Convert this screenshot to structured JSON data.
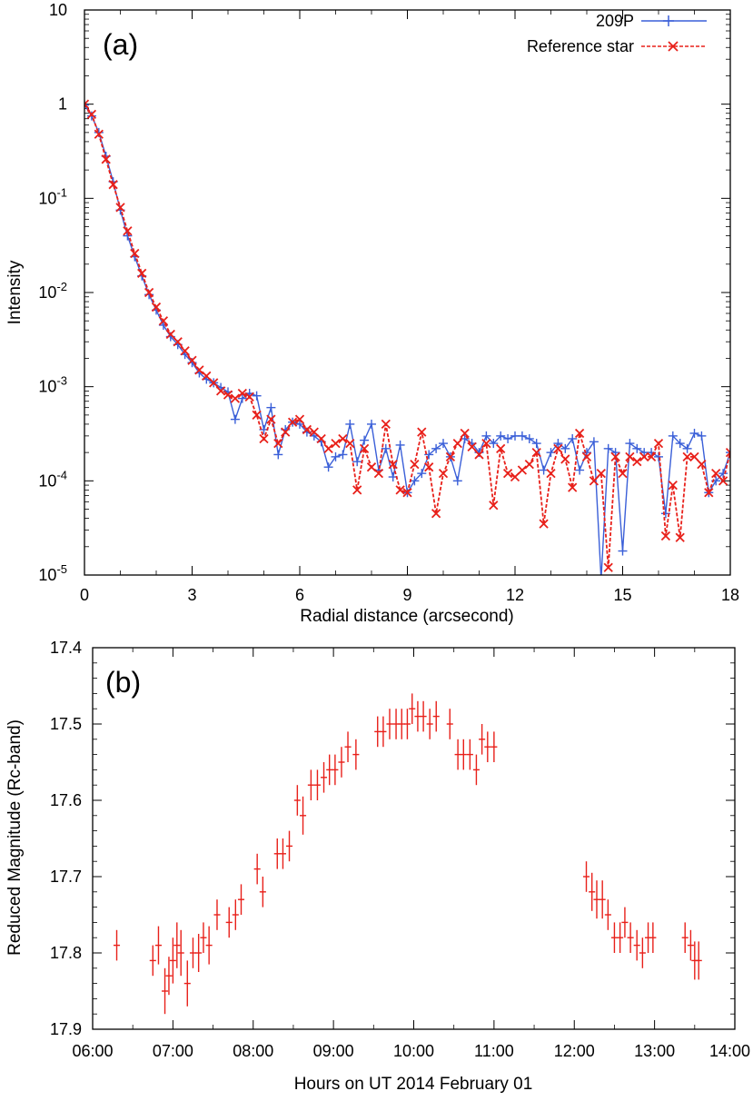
{
  "colors": {
    "blue": "#3a5fd8",
    "red": "#e8201a",
    "axis": "#000000"
  },
  "chart_data": [
    {
      "id": "a",
      "type": "line",
      "panel_label": "(a)",
      "xlabel": "Radial distance (arcsecond)",
      "ylabel": "Intensity",
      "xlim": [
        0,
        18
      ],
      "ylim": [
        1e-05,
        10
      ],
      "yscale": "log",
      "xticks": [
        "0",
        "3",
        "6",
        "9",
        "12",
        "15",
        "18"
      ],
      "yticks": [
        {
          "base": "10",
          "exp": "-5"
        },
        {
          "base": "10",
          "exp": "-4"
        },
        {
          "base": "10",
          "exp": "-3"
        },
        {
          "base": "10",
          "exp": "-2"
        },
        {
          "base": "10",
          "exp": "-1"
        },
        {
          "base": "1",
          "exp": ""
        },
        {
          "base": "10",
          "exp": ""
        }
      ],
      "legend_position": "top-right",
      "series": [
        {
          "name": "209P",
          "color": "#3a5fd8",
          "marker": "plus",
          "x": [
            0.0,
            0.2,
            0.4,
            0.6,
            0.8,
            1.0,
            1.2,
            1.4,
            1.6,
            1.8,
            2.0,
            2.2,
            2.4,
            2.6,
            2.8,
            3.0,
            3.2,
            3.4,
            3.6,
            3.8,
            4.0,
            4.2,
            4.4,
            4.6,
            4.8,
            5.0,
            5.2,
            5.4,
            5.6,
            5.8,
            6.0,
            6.2,
            6.4,
            6.6,
            6.8,
            7.0,
            7.2,
            7.4,
            7.6,
            7.8,
            8.0,
            8.2,
            8.4,
            8.6,
            8.8,
            9.0,
            9.2,
            9.4,
            9.6,
            9.8,
            10.0,
            10.2,
            10.4,
            10.6,
            10.8,
            11.0,
            11.2,
            11.4,
            11.6,
            11.8,
            12.0,
            12.2,
            12.4,
            12.6,
            12.8,
            13.0,
            13.2,
            13.4,
            13.6,
            13.8,
            14.0,
            14.2,
            14.4,
            14.6,
            14.8,
            15.0,
            15.2,
            15.4,
            15.6,
            15.8,
            16.0,
            16.2,
            16.4,
            16.6,
            16.8,
            17.0,
            17.2,
            17.4,
            17.6,
            17.8,
            18.0
          ],
          "y": [
            0.98,
            0.75,
            0.5,
            0.28,
            0.15,
            0.075,
            0.04,
            0.024,
            0.015,
            0.0095,
            0.0065,
            0.0045,
            0.0034,
            0.0028,
            0.0022,
            0.0018,
            0.0014,
            0.0012,
            0.0011,
            0.00098,
            0.00088,
            0.00045,
            0.00075,
            0.00085,
            0.0008,
            0.00035,
            0.0006,
            0.00019,
            0.00035,
            0.00042,
            0.0004,
            0.00033,
            0.0003,
            0.00026,
            0.00014,
            0.00018,
            0.00019,
            0.0004,
            0.00016,
            0.00027,
            0.0004,
            0.00013,
            0.00022,
            0.00011,
            0.00024,
            7.5e-05,
            0.0001,
            0.00012,
            0.00019,
            0.00022,
            0.00025,
            0.00018,
            0.0001,
            0.00028,
            0.00025,
            0.0002,
            0.0003,
            0.00025,
            0.0003,
            0.00028,
            0.0003,
            0.0003,
            0.00028,
            0.00025,
            0.00013,
            0.0002,
            0.00025,
            0.00022,
            0.00028,
            0.00013,
            0.0002,
            0.00026,
            9e-06,
            0.00022,
            0.0002,
            1.8e-05,
            0.00025,
            0.00022,
            0.0002,
            0.0002,
            0.00018,
            4.5e-05,
            0.0003,
            0.00025,
            0.00022,
            0.00032,
            0.0003,
            7.5e-05,
            0.0001,
            0.00012,
            0.0002
          ]
        },
        {
          "name": "Reference star",
          "color": "#e8201a",
          "marker": "cross",
          "x": [
            0.0,
            0.2,
            0.4,
            0.6,
            0.8,
            1.0,
            1.2,
            1.4,
            1.6,
            1.8,
            2.0,
            2.2,
            2.4,
            2.6,
            2.8,
            3.0,
            3.2,
            3.4,
            3.6,
            3.8,
            4.0,
            4.2,
            4.4,
            4.6,
            4.8,
            5.0,
            5.2,
            5.4,
            5.6,
            5.8,
            6.0,
            6.2,
            6.4,
            6.6,
            6.8,
            7.0,
            7.2,
            7.4,
            7.6,
            7.8,
            8.0,
            8.2,
            8.4,
            8.6,
            8.8,
            9.0,
            9.2,
            9.4,
            9.6,
            9.8,
            10.0,
            10.2,
            10.4,
            10.6,
            10.8,
            11.0,
            11.2,
            11.4,
            11.6,
            11.8,
            12.0,
            12.2,
            12.4,
            12.6,
            12.8,
            13.0,
            13.2,
            13.4,
            13.6,
            13.8,
            14.0,
            14.2,
            14.4,
            14.6,
            14.8,
            15.0,
            15.2,
            15.4,
            15.6,
            15.8,
            16.0,
            16.2,
            16.4,
            16.6,
            16.8,
            17.0,
            17.2,
            17.4,
            17.6,
            17.8,
            18.0
          ],
          "y": [
            1.0,
            0.78,
            0.48,
            0.26,
            0.14,
            0.08,
            0.045,
            0.026,
            0.016,
            0.01,
            0.007,
            0.005,
            0.0036,
            0.003,
            0.0024,
            0.0019,
            0.0015,
            0.0013,
            0.0011,
            0.0009,
            0.00082,
            0.00075,
            0.00085,
            0.00078,
            0.0005,
            0.00028,
            0.00045,
            0.00025,
            0.00033,
            0.00042,
            0.00045,
            0.00035,
            0.00033,
            0.00028,
            0.00022,
            0.00025,
            0.00028,
            0.00025,
            8e-05,
            0.00022,
            0.00014,
            0.00012,
            0.0004,
            0.00015,
            8e-05,
            7.5e-05,
            0.00015,
            0.00033,
            0.00014,
            4.5e-05,
            0.00012,
            0.00018,
            0.00025,
            0.00032,
            0.00023,
            0.00019,
            0.00025,
            5.5e-05,
            0.00022,
            0.00012,
            0.00011,
            0.00013,
            0.00015,
            0.0002,
            3.5e-05,
            0.00012,
            0.00022,
            0.00017,
            8.5e-05,
            0.00032,
            0.00018,
            0.0001,
            0.00012,
            1.2e-05,
            0.00018,
            0.00012,
            0.00018,
            0.00016,
            0.00018,
            0.00018,
            0.00025,
            2.6e-05,
            9e-05,
            2.5e-05,
            0.00018,
            0.00018,
            0.00015,
            7.5e-05,
            0.00012,
            0.0001,
            0.0002
          ]
        }
      ]
    },
    {
      "id": "b",
      "type": "scatter",
      "panel_label": "(b)",
      "xlabel": "Hours on UT 2014 February 01",
      "ylabel": "Reduced Magnitude (Rc-band)",
      "xlim": [
        6.0,
        14.0
      ],
      "ylim": [
        17.9,
        17.4
      ],
      "y_inverted": true,
      "xticks": [
        "06:00",
        "07:00",
        "08:00",
        "09:00",
        "10:00",
        "11:00",
        "12:00",
        "13:00",
        "14:00"
      ],
      "yticks": [
        "17.4",
        "17.5",
        "17.6",
        "17.7",
        "17.8",
        "17.9"
      ],
      "series": [
        {
          "name": "209P",
          "color": "#e8201a",
          "marker": "errorbar",
          "x_err_hours": 0.04,
          "points": [
            [
              6.3,
              17.79,
              0.02
            ],
            [
              6.75,
              17.81,
              0.02
            ],
            [
              6.82,
              17.79,
              0.025
            ],
            [
              6.9,
              17.85,
              0.03
            ],
            [
              6.95,
              17.83,
              0.025
            ],
            [
              7.0,
              17.81,
              0.03
            ],
            [
              7.05,
              17.79,
              0.03
            ],
            [
              7.1,
              17.8,
              0.03
            ],
            [
              7.18,
              17.84,
              0.03
            ],
            [
              7.25,
              17.8,
              0.02
            ],
            [
              7.32,
              17.8,
              0.025
            ],
            [
              7.38,
              17.78,
              0.02
            ],
            [
              7.45,
              17.79,
              0.025
            ],
            [
              7.55,
              17.75,
              0.02
            ],
            [
              7.7,
              17.76,
              0.02
            ],
            [
              7.78,
              17.75,
              0.02
            ],
            [
              7.85,
              17.73,
              0.02
            ],
            [
              8.05,
              17.69,
              0.02
            ],
            [
              8.12,
              17.72,
              0.02
            ],
            [
              8.3,
              17.67,
              0.02
            ],
            [
              8.37,
              17.67,
              0.02
            ],
            [
              8.45,
              17.66,
              0.02
            ],
            [
              8.55,
              17.6,
              0.02
            ],
            [
              8.62,
              17.62,
              0.025
            ],
            [
              8.72,
              17.58,
              0.02
            ],
            [
              8.8,
              17.58,
              0.02
            ],
            [
              8.88,
              17.57,
              0.02
            ],
            [
              8.95,
              17.56,
              0.02
            ],
            [
              9.02,
              17.56,
              0.02
            ],
            [
              9.1,
              17.55,
              0.02
            ],
            [
              9.18,
              17.53,
              0.02
            ],
            [
              9.28,
              17.54,
              0.02
            ],
            [
              9.55,
              17.51,
              0.02
            ],
            [
              9.62,
              17.51,
              0.02
            ],
            [
              9.7,
              17.5,
              0.02
            ],
            [
              9.78,
              17.5,
              0.02
            ],
            [
              9.85,
              17.5,
              0.02
            ],
            [
              9.92,
              17.5,
              0.02
            ],
            [
              9.98,
              17.48,
              0.02
            ],
            [
              10.05,
              17.49,
              0.02
            ],
            [
              10.12,
              17.49,
              0.02
            ],
            [
              10.2,
              17.5,
              0.02
            ],
            [
              10.28,
              17.49,
              0.02
            ],
            [
              10.45,
              17.5,
              0.02
            ],
            [
              10.55,
              17.54,
              0.02
            ],
            [
              10.62,
              17.54,
              0.02
            ],
            [
              10.7,
              17.54,
              0.02
            ],
            [
              10.78,
              17.56,
              0.02
            ],
            [
              10.85,
              17.52,
              0.02
            ],
            [
              10.92,
              17.53,
              0.02
            ],
            [
              11.0,
              17.53,
              0.02
            ],
            [
              12.15,
              17.7,
              0.02
            ],
            [
              12.22,
              17.72,
              0.025
            ],
            [
              12.28,
              17.73,
              0.025
            ],
            [
              12.35,
              17.73,
              0.025
            ],
            [
              12.42,
              17.75,
              0.02
            ],
            [
              12.5,
              17.78,
              0.02
            ],
            [
              12.57,
              17.78,
              0.02
            ],
            [
              12.63,
              17.76,
              0.02
            ],
            [
              12.7,
              17.78,
              0.02
            ],
            [
              12.78,
              17.79,
              0.02
            ],
            [
              12.85,
              17.8,
              0.02
            ],
            [
              12.92,
              17.78,
              0.02
            ],
            [
              12.98,
              17.78,
              0.02
            ],
            [
              13.38,
              17.78,
              0.02
            ],
            [
              13.45,
              17.79,
              0.02
            ],
            [
              13.5,
              17.81,
              0.025
            ],
            [
              13.55,
              17.81,
              0.025
            ]
          ]
        }
      ]
    }
  ]
}
